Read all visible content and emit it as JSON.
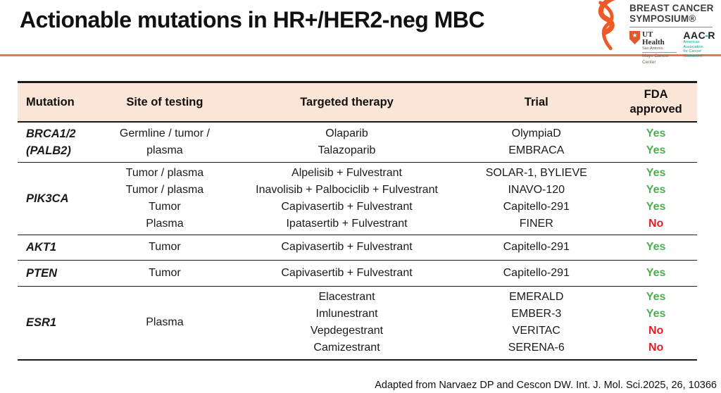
{
  "title": "Actionable mutations in HR+/HER2-neg MBC",
  "logo": {
    "org_line1": "BREAST CANCER",
    "org_line2": "SYMPOSIUM®",
    "ut_health": "UT Health",
    "ut_sub": "San Antonio",
    "ut_center": "Mays Cancer Center",
    "ut_star": "★",
    "aacr_a": "AAC",
    "aacr_dash": "-",
    "aacr_r": "R",
    "aacr_sub1": "American Association",
    "aacr_sub2": "for Cancer Research®"
  },
  "table": {
    "headers": [
      "Mutation",
      "Site of testing",
      "Targeted therapy",
      "Trial",
      "FDA\napproved"
    ],
    "rows": [
      {
        "row_class": "row-brca",
        "mutation": [
          "BRCA1/2",
          "(PALB2)"
        ],
        "site": [
          "Germline / tumor /",
          "plasma"
        ],
        "therapy": [
          "Olaparib",
          "Talazoparib"
        ],
        "trial": [
          "OlympiaD",
          "EMBRACA"
        ],
        "fda": [
          {
            "text": "Yes",
            "approved": true
          },
          {
            "text": "Yes",
            "approved": true
          }
        ]
      },
      {
        "row_class": "row-pik3ca",
        "mutation": [
          "PIK3CA"
        ],
        "site": [
          "Tumor / plasma",
          "Tumor / plasma",
          "Tumor",
          "Plasma"
        ],
        "therapy": [
          "Alpelisib + Fulvestrant",
          "Inavolisib + Palbociclib + Fulvestrant",
          "Capivasertib + Fulvestrant",
          "Ipatasertib + Fulvestrant"
        ],
        "trial": [
          "SOLAR-1, BYLIEVE",
          "INAVO-120",
          "Capitello-291",
          "FINER"
        ],
        "fda": [
          {
            "text": "Yes",
            "approved": true
          },
          {
            "text": "Yes",
            "approved": true
          },
          {
            "text": "Yes",
            "approved": true
          },
          {
            "text": "No",
            "approved": false
          }
        ]
      },
      {
        "row_class": "row-akt1",
        "mutation": [
          "AKT1"
        ],
        "site": [
          "Tumor"
        ],
        "therapy": [
          "Capivasertib + Fulvestrant"
        ],
        "trial": [
          "Capitello-291"
        ],
        "fda": [
          {
            "text": "Yes",
            "approved": true
          }
        ]
      },
      {
        "row_class": "row-pten",
        "mutation": [
          "PTEN"
        ],
        "site": [
          "Tumor"
        ],
        "therapy": [
          "Capivasertib + Fulvestrant"
        ],
        "trial": [
          "Capitello-291"
        ],
        "fda": [
          {
            "text": "Yes",
            "approved": true
          }
        ]
      },
      {
        "row_class": "row-esr1",
        "mutation": [
          "ESR1"
        ],
        "site": [
          "Plasma"
        ],
        "therapy": [
          "Elacestrant",
          "Imlunestrant",
          "Vepdegestrant",
          "Camizestrant"
        ],
        "trial": [
          "EMERALD",
          "EMBER-3",
          "VERITAC",
          "SERENA-6"
        ],
        "fda": [
          {
            "text": "Yes",
            "approved": true
          },
          {
            "text": "Yes",
            "approved": true
          },
          {
            "text": "No",
            "approved": false
          },
          {
            "text": "No",
            "approved": false
          }
        ]
      }
    ]
  },
  "footer": "Adapted from Narvaez DP and Cescon DW. Int. J. Mol. Sci.2025, 26, 10366",
  "colors": {
    "accent_orange": "#E8745A",
    "header_bg": "#FBE5D6",
    "fda_yes": "#4CAF50",
    "fda_no": "#EC1C24",
    "ribbon_orange": "#EB5B28",
    "aacr_teal": "#00A79D"
  }
}
